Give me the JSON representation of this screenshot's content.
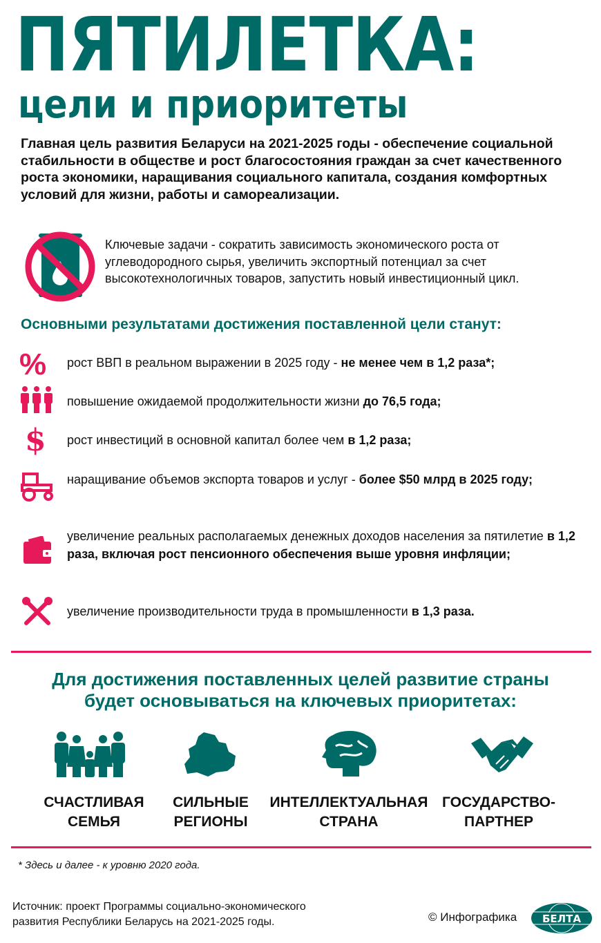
{
  "header": {
    "title": "ПЯТИЛЕТКА:",
    "subtitle": "цели и приоритеты"
  },
  "lead": "Главная цель развития Беларуси на 2021-2025 годы - обеспечение социальной стабильности в обществе и рост благосостояния граждан за счет качественного роста экономики, наращивания социального капитала, создания комфортных условий для жизни, работы и самореализации.",
  "tasks": "Ключевые задачи - сократить зависимость экономического роста от углеводородного сырья, увеличить экспортный потенциал за счет высокотехнологичных товаров, запустить новый инвестиционный цикл.",
  "results": {
    "heading": "Основными результатами достижения поставленной цели станут:",
    "items": [
      {
        "icon": "percent-icon",
        "text": "рост ВВП в реальном выражении в 2025 году - ",
        "bold": "не менее чем в 1,2 раза*;"
      },
      {
        "icon": "people-icon",
        "text": "повышение ожидаемой продолжительности жизни ",
        "bold": "до 76,5 года;"
      },
      {
        "icon": "dollar-icon",
        "text": "рост инвестиций в основной капитал более чем ",
        "bold": "в 1,2 раза;"
      },
      {
        "icon": "tractor-icon",
        "text": "наращивание объемов экспорта товаров и услуг - ",
        "bold": "более $50 млрд в 2025 году;"
      },
      {
        "icon": "wallet-icon",
        "text": "увеличение реальных располагаемых денежных доходов населения за пятилетие ",
        "bold": "в 1,2 раза, включая рост пенсионного обеспечения выше уровня инфляции;"
      },
      {
        "icon": "tools-icon",
        "text": "увеличение производительности труда в промышленности ",
        "bold": "в 1,3 раза."
      }
    ]
  },
  "priorities": {
    "heading1": "Для достижения поставленных целей развитие страны",
    "heading2": "будет основываться на ключевых приоритетах:",
    "items": [
      {
        "icon": "family-icon",
        "line1": "СЧАСТЛИВАЯ",
        "line2": "СЕМЬЯ"
      },
      {
        "icon": "map-icon",
        "line1": "СИЛЬНЫЕ",
        "line2": "РЕГИОНЫ"
      },
      {
        "icon": "brain-icon",
        "line1": "ИНТЕЛЛЕКТУАЛЬНАЯ",
        "line2": "СТРАНА"
      },
      {
        "icon": "handshake-icon",
        "line1": "ГОСУДАРСТВО-",
        "line2": "ПАРТНЕР"
      }
    ]
  },
  "footnote": "* Здесь и далее - к уровню 2020 года.",
  "source1": "Источник: проект Программы социально-экономического",
  "source2": "развития Республики Беларусь на 2021-2025 годы.",
  "copyright": "© Инфографика",
  "logo": "БЕЛТА",
  "colors": {
    "teal": "#006b66",
    "pink": "#e6195a"
  }
}
